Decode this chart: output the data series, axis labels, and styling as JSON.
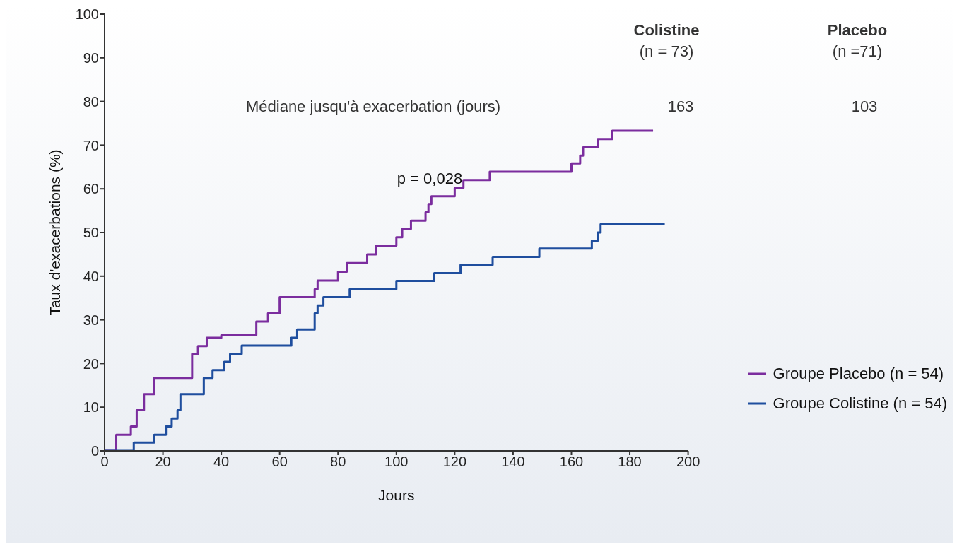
{
  "chart_data": {
    "type": "step",
    "xlabel": "Jours",
    "ylabel": "Taux d'exacerbations (%)",
    "xlim": [
      0,
      200
    ],
    "xticks": [
      0,
      20,
      40,
      60,
      80,
      100,
      120,
      140,
      160,
      180,
      200
    ],
    "ylim": [
      0,
      100
    ],
    "yticks": [
      0,
      10,
      20,
      30,
      40,
      50,
      60,
      70,
      80,
      90,
      100
    ],
    "grid": false,
    "legend": "bottom right",
    "marker": "none",
    "line_style": "solid",
    "annotations": [
      "Colistine",
      "(n = 73)",
      "Placebo",
      "(n =71)",
      "Médiane jusqu'à exacerbation (jours)",
      "163",
      "103",
      "p = 0,028"
    ],
    "series": [
      {
        "name": "Groupe Placebo (n = 54)",
        "color": "#7b2d9e",
        "x": [
          0,
          4,
          9,
          11,
          13.5,
          17,
          30,
          32,
          35,
          40,
          52,
          56,
          60,
          72,
          73,
          80,
          83,
          90,
          93,
          100,
          102,
          105,
          110,
          111,
          112,
          120,
          123,
          132,
          160,
          163,
          164,
          169,
          174,
          188
        ],
        "values": [
          0,
          3.7,
          5.6,
          9.3,
          13,
          16.7,
          22.2,
          24,
          25.9,
          26.5,
          29.6,
          31.5,
          35.2,
          37,
          39,
          41,
          43,
          45,
          47,
          48.9,
          50.8,
          52.7,
          54.6,
          56.5,
          58.3,
          60.2,
          62,
          63.9,
          65.8,
          67.6,
          69.5,
          71.4,
          73.3,
          73.3
        ]
      },
      {
        "name": "Groupe Colistine (n = 54)",
        "color": "#1f4e9e",
        "x": [
          0,
          10,
          17,
          21,
          23,
          25,
          26,
          34,
          37,
          41,
          43,
          47,
          64,
          66,
          72,
          73,
          75,
          84,
          100,
          113,
          122,
          133,
          149,
          167,
          169,
          170,
          192
        ],
        "values": [
          0,
          1.9,
          3.7,
          5.6,
          7.4,
          9.3,
          13,
          16.7,
          18.5,
          20.4,
          22.2,
          24.1,
          25.9,
          27.8,
          31.5,
          33.3,
          35.2,
          37,
          38.9,
          40.7,
          42.6,
          44.4,
          46.3,
          48.1,
          50,
          51.9,
          51.9
        ]
      }
    ]
  }
}
